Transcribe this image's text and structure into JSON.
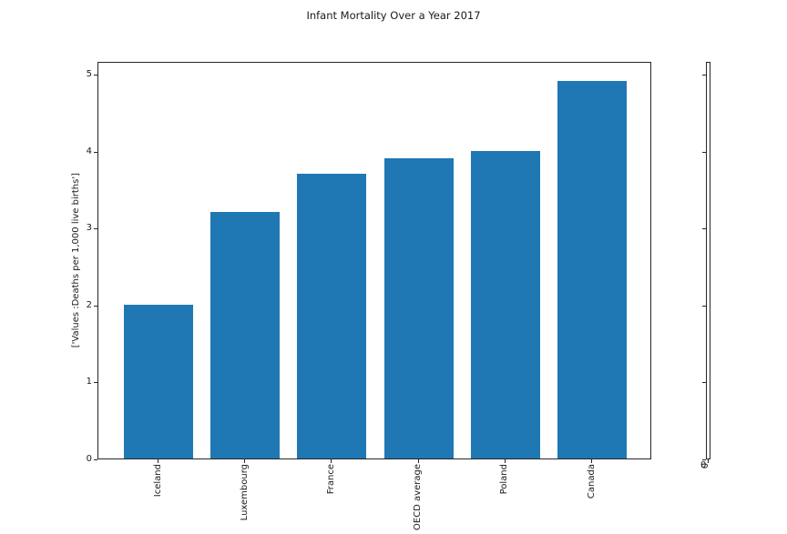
{
  "title": "Infant Mortality Over a Year 2017",
  "chart_data": {
    "type": "bar",
    "title": "Infant Mortality Over a Year 2017",
    "categories": [
      "Iceland",
      "Luxembourg",
      "France",
      "OECD average",
      "Poland",
      "Canada"
    ],
    "values": [
      2.0,
      3.2,
      3.7,
      3.9,
      4.0,
      4.9
    ],
    "xlabel": "",
    "ylabel": "['Values :Deaths per 1,000 live births']",
    "yticks": [
      0,
      1,
      2,
      3,
      4,
      5
    ],
    "ylim": [
      0,
      5.165
    ],
    "bar_color": "#1f77b4",
    "grid": false,
    "legend_position": "none"
  },
  "secondary_axis": {
    "bottom_label": "0"
  }
}
